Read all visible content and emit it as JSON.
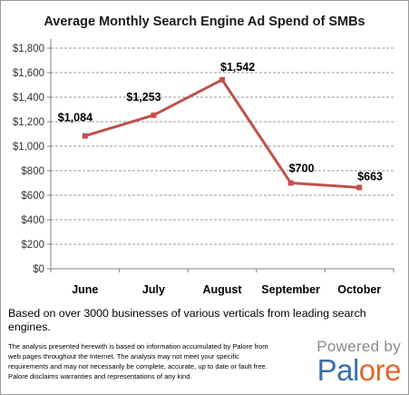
{
  "colors": {
    "series": "#c0504d",
    "grid": "#9a9a9a",
    "axis": "#808080",
    "logo_primary": "#3b6fa8",
    "logo_accent": "#e0682a"
  },
  "chart_data": {
    "type": "line",
    "title": "Average Monthly Search Engine Ad Spend of SMBs",
    "categories": [
      "June",
      "July",
      "August",
      "September",
      "October"
    ],
    "values": [
      1084,
      1253,
      1542,
      700,
      663
    ],
    "data_labels": [
      "$1,084",
      "$1,253",
      "$1,542",
      "$700",
      "$663"
    ],
    "ylim": [
      0,
      1800
    ],
    "yticks": [
      0,
      200,
      400,
      600,
      800,
      1000,
      1200,
      1400,
      1600,
      1800
    ],
    "ytick_labels": [
      "$0",
      "$200",
      "$400",
      "$600",
      "$800",
      "$1,000",
      "$1,200",
      "$1,400",
      "$1,600",
      "$1,800"
    ],
    "grid": true,
    "legend": "none",
    "xlabel": "",
    "ylabel": ""
  },
  "footer": {
    "note": "Based on over 3000 businesses of various  verticals from leading search engines.",
    "disclaimer": "The analysis  presented herewith is based on  information accumulated by Palore from web pages throughout the Internet. The analysis may not meet your specific requirements and may not necessarily be  complete, accurate, up to date or  fault free. Palore disclaims warranties and representations of any kind.",
    "powered_by": "Powered by",
    "logo_text_primary": "Pal",
    "logo_text_accent": "ore"
  }
}
